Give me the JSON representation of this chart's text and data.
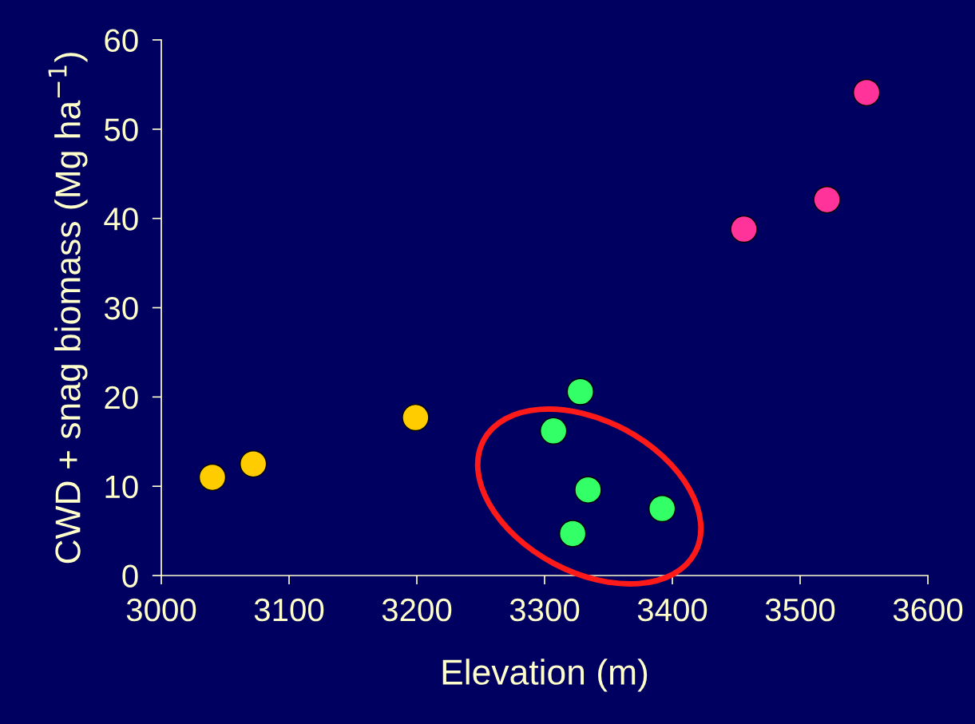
{
  "chart_data": {
    "type": "scatter",
    "xlabel": "Elevation (m)",
    "ylabel": "CWD + snag biomass (Mg ha$^{−1}$)",
    "xlim": [
      3000,
      3600
    ],
    "xticks": [
      3000,
      3100,
      3200,
      3300,
      3400,
      3500,
      3600
    ],
    "ylim": [
      0,
      60
    ],
    "yticks": [
      0,
      10,
      20,
      30,
      40,
      50,
      60
    ],
    "grid": false,
    "marker": "circle",
    "series": [
      {
        "color": "#ffcc00",
        "x": [
          3040,
          3072,
          3199
        ],
        "values": [
          11.0,
          12.5,
          17.7
        ]
      },
      {
        "color": "#33ff66",
        "x": [
          3328,
          3307,
          3334,
          3392,
          3322
        ],
        "values": [
          20.6,
          16.2,
          9.6,
          7.5,
          4.7
        ]
      },
      {
        "color": "#ff3399",
        "x": [
          3456,
          3521,
          3552
        ],
        "values": [
          38.8,
          42.1,
          54.1
        ]
      }
    ]
  }
}
